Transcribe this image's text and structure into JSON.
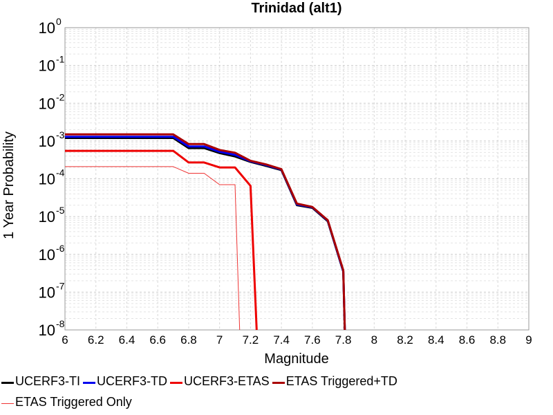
{
  "chart_data": {
    "type": "line",
    "title": "Trinidad (alt1)",
    "xlabel": "Magnitude",
    "ylabel": "1 Year Probability",
    "xlim": [
      6,
      9
    ],
    "ylim": [
      1e-08,
      1
    ],
    "yscale": "log",
    "grid": true,
    "legend_position": "bottom",
    "x_ticks": [
      "6",
      "6.2",
      "6.4",
      "6.6",
      "6.8",
      "7",
      "7.2",
      "7.4",
      "7.6",
      "7.8",
      "8",
      "8.2",
      "8.4",
      "8.6",
      "8.8",
      "9"
    ],
    "y_ticks": [
      {
        "base": "10",
        "exp": "0",
        "value": 1
      },
      {
        "base": "10",
        "exp": "-1",
        "value": 0.1
      },
      {
        "base": "10",
        "exp": "-2",
        "value": 0.01
      },
      {
        "base": "10",
        "exp": "-3",
        "value": 0.001
      },
      {
        "base": "10",
        "exp": "-4",
        "value": 0.0001
      },
      {
        "base": "10",
        "exp": "-5",
        "value": 1e-05
      },
      {
        "base": "10",
        "exp": "-6",
        "value": 1e-06
      },
      {
        "base": "10",
        "exp": "-7",
        "value": 1e-07
      },
      {
        "base": "10",
        "exp": "-8",
        "value": 1e-08
      }
    ],
    "series": [
      {
        "name": "UCERF3-TI",
        "color": "#000000",
        "width": 3,
        "x": [
          6.0,
          6.7,
          6.8,
          6.9,
          7.0,
          7.1,
          7.2,
          7.3,
          7.4,
          7.5,
          7.6,
          7.7,
          7.8,
          7.81
        ],
        "y": [
          0.0012,
          0.0012,
          0.00065,
          0.00065,
          0.00048,
          0.00039,
          0.00028,
          0.00022,
          0.00017,
          2e-05,
          1.7e-05,
          7.5e-06,
          3.5e-07,
          1e-08
        ]
      },
      {
        "name": "UCERF3-TD",
        "color": "#0000ee",
        "width": 3,
        "x": [
          6.0,
          6.7,
          6.8,
          6.9,
          7.0,
          7.1,
          7.2,
          7.3,
          7.4,
          7.5,
          7.6,
          7.7,
          7.8,
          7.81
        ],
        "y": [
          0.0013,
          0.0013,
          0.00072,
          0.00072,
          0.00052,
          0.00043,
          0.00029,
          0.00023,
          0.000175,
          2.1e-05,
          1.75e-05,
          7.8e-06,
          3.6e-07,
          1e-08
        ]
      },
      {
        "name": "UCERF3-ETAS",
        "color": "#ee0000",
        "width": 3,
        "x": [
          6.0,
          6.7,
          6.8,
          6.9,
          7.0,
          7.1,
          7.2,
          7.24
        ],
        "y": [
          0.00055,
          0.00055,
          0.00027,
          0.00027,
          0.0002,
          0.0002,
          6.5e-05,
          1e-08
        ]
      },
      {
        "name": "ETAS Triggered+TD",
        "color": "#aa0000",
        "width": 3,
        "x": [
          6.0,
          6.7,
          6.8,
          6.9,
          7.0,
          7.1,
          7.2,
          7.3,
          7.4,
          7.5,
          7.6,
          7.7,
          7.8,
          7.81
        ],
        "y": [
          0.0015,
          0.0015,
          0.00083,
          0.00083,
          0.00058,
          0.00049,
          0.0003,
          0.00024,
          0.00018,
          2.2e-05,
          1.8e-05,
          8e-06,
          3.8e-07,
          1e-08
        ]
      },
      {
        "name": "ETAS Triggered Only",
        "color": "#ee3333",
        "width": 1,
        "x": [
          6.0,
          6.7,
          6.8,
          6.9,
          7.0,
          7.1,
          7.13
        ],
        "y": [
          0.00021,
          0.00021,
          0.00014,
          0.00014,
          7e-05,
          7e-05,
          1e-08
        ]
      }
    ]
  }
}
